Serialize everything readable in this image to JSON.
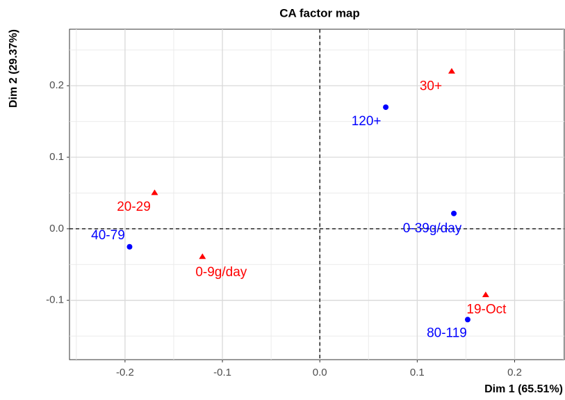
{
  "chart_data": {
    "type": "scatter",
    "title": "CA factor map",
    "xlabel": "Dim 1 (65.51%)",
    "ylabel": "Dim 2 (29.37%)",
    "xlim": [
      -0.257,
      0.251
    ],
    "ylim": [
      -0.183,
      0.279
    ],
    "xticks": [
      -0.2,
      -0.1,
      {
        "value": 0,
        "label": "0.0"
      },
      0.1,
      0.2
    ],
    "yticks": [
      -0.1,
      {
        "value": 0,
        "label": "0.0"
      },
      0.1,
      0.2
    ],
    "grid": true,
    "hline": 0,
    "vline": 0,
    "series": [
      {
        "color": "#0000ff",
        "marker": "circle",
        "labels": [
          "120+",
          "0-39g/day",
          "40-79",
          "80-119"
        ],
        "x": [
          0.0677,
          0.1376,
          -0.1953,
          0.1518
        ],
        "values": [
          0.17,
          0.0214,
          -0.0252,
          -0.127
        ]
      },
      {
        "color": "#ff0000",
        "marker": "triangle",
        "labels": [
          "30+",
          "20-29",
          "0-9g/day",
          "19-Oct"
        ],
        "x": [
          0.1354,
          -0.1696,
          -0.1205,
          0.1703
        ],
        "values": [
          0.2204,
          0.0505,
          -0.0388,
          -0.0922
        ]
      }
    ]
  }
}
